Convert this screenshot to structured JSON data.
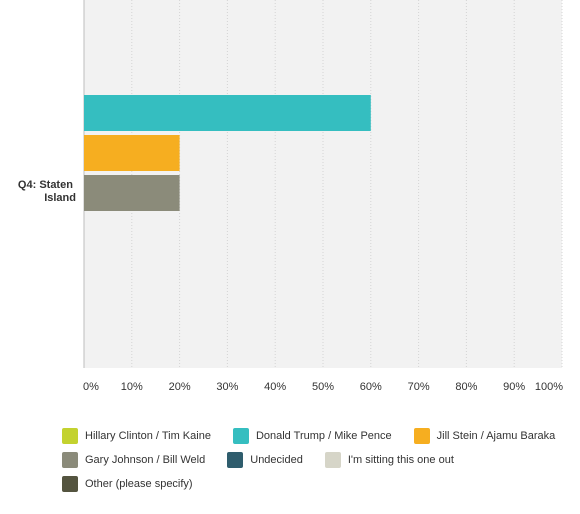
{
  "chart_data": {
    "type": "bar",
    "orientation": "horizontal",
    "categories": [
      "Q4: Staten Island"
    ],
    "category_label_lines": [
      "Q4: Staten",
      "Island"
    ],
    "series": [
      {
        "name": "Hillary Clinton / Tim Kaine",
        "color": "#c3d22f",
        "values": [
          0
        ]
      },
      {
        "name": "Donald Trump / Mike Pence",
        "color": "#35bec0",
        "values": [
          60
        ]
      },
      {
        "name": "Jill Stein / Ajamu Baraka",
        "color": "#f6ae20",
        "values": [
          20
        ]
      },
      {
        "name": "Gary Johnson / Bill Weld",
        "color": "#8b8b7a",
        "values": [
          20
        ]
      },
      {
        "name": "Undecided",
        "color": "#2f5d6d",
        "values": [
          0
        ]
      },
      {
        "name": "I'm sitting this one out",
        "color": "#d6d5c8",
        "values": [
          0
        ]
      },
      {
        "name": "Other (please specify)",
        "color": "#54543f",
        "values": [
          0
        ]
      }
    ],
    "xlim": [
      0,
      100
    ],
    "x_ticks": [
      "0%",
      "10%",
      "20%",
      "30%",
      "40%",
      "50%",
      "60%",
      "70%",
      "80%",
      "90%",
      "100%"
    ],
    "grid": true,
    "legend_position": "bottom"
  }
}
